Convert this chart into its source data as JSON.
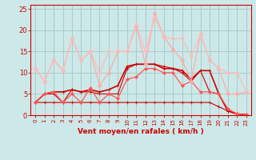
{
  "background_color": "#cce8e8",
  "grid_color": "#aacccc",
  "xlabel": "Vent moyen/en rafales ( km/h )",
  "xlabel_color": "#cc0000",
  "tick_label_color": "#cc0000",
  "axis_color": "#cc0000",
  "xlim": [
    -0.5,
    23.5
  ],
  "ylim": [
    0,
    26
  ],
  "yticks": [
    0,
    5,
    10,
    15,
    20,
    25
  ],
  "xticks": [
    0,
    1,
    2,
    3,
    4,
    5,
    6,
    7,
    8,
    9,
    10,
    11,
    12,
    13,
    14,
    15,
    16,
    17,
    18,
    19,
    20,
    21,
    22,
    23
  ],
  "lines": [
    {
      "x": [
        0,
        1,
        2,
        3,
        4,
        5,
        6,
        7,
        8,
        9,
        10,
        11,
        12,
        13,
        14,
        15,
        16,
        17,
        18,
        19,
        20,
        21,
        22,
        23
      ],
      "y": [
        3,
        3,
        3,
        3,
        3,
        3,
        3,
        3,
        3,
        3,
        3,
        3,
        3,
        3,
        3,
        3,
        3,
        3,
        3,
        3,
        2,
        1,
        0.3,
        0.1
      ],
      "color": "#cc0000",
      "lw": 0.8,
      "marker": "+",
      "ms": 3.0
    },
    {
      "x": [
        0,
        1,
        2,
        3,
        4,
        5,
        6,
        7,
        8,
        9,
        10,
        11,
        12,
        13,
        14,
        15,
        16,
        17,
        18,
        19,
        20,
        21,
        22,
        23
      ],
      "y": [
        3,
        5,
        5,
        3,
        6,
        5.5,
        5.5,
        5,
        5,
        5,
        11,
        12,
        12,
        12,
        11.5,
        11,
        10,
        8,
        10.5,
        5.5,
        5,
        1,
        0.3,
        0.1
      ],
      "color": "#cc0000",
      "lw": 0.8,
      "marker": "+",
      "ms": 3.0
    },
    {
      "x": [
        0,
        1,
        2,
        3,
        4,
        5,
        6,
        7,
        8,
        9,
        10,
        11,
        12,
        13,
        14,
        15,
        16,
        17,
        18,
        19,
        20,
        21,
        22,
        23
      ],
      "y": [
        3,
        5,
        5.5,
        5.5,
        6,
        5.5,
        6,
        5.5,
        6,
        7,
        11.5,
        12,
        12,
        12,
        11,
        11,
        10.5,
        8.5,
        10.5,
        10.5,
        5,
        1,
        0.3,
        0.1
      ],
      "color": "#cc0000",
      "lw": 1.2,
      "marker": "+",
      "ms": 3.0
    },
    {
      "x": [
        0,
        1,
        2,
        3,
        4,
        5,
        6,
        7,
        8,
        9,
        10,
        11,
        12,
        13,
        14,
        15,
        16,
        17,
        18,
        19,
        20,
        21,
        22,
        23
      ],
      "y": [
        3,
        5,
        5.5,
        3,
        5,
        3,
        6.5,
        3,
        5,
        4,
        8.5,
        9,
        11,
        11,
        10,
        10,
        7,
        8,
        5.5,
        5.5,
        5,
        1.5,
        0.3,
        0.1
      ],
      "color": "#ff5555",
      "lw": 0.9,
      "marker": "D",
      "ms": 2.0
    },
    {
      "x": [
        0,
        1,
        2,
        3,
        4,
        5,
        6,
        7,
        8,
        9,
        10,
        11,
        12,
        13,
        14,
        15,
        16,
        17,
        18,
        19,
        20,
        21,
        22,
        23
      ],
      "y": [
        11,
        8,
        13,
        10.5,
        18,
        13,
        15,
        7,
        10,
        15,
        15,
        21,
        12,
        24,
        18.5,
        15.5,
        13,
        8,
        19,
        13,
        11,
        5,
        5,
        5.5
      ],
      "color": "#ffaaaa",
      "lw": 0.9,
      "marker": "D",
      "ms": 2.5
    },
    {
      "x": [
        0,
        1,
        2,
        3,
        4,
        5,
        6,
        7,
        8,
        9,
        10,
        11,
        12,
        13,
        14,
        15,
        16,
        17,
        18,
        19,
        20,
        21,
        22,
        23
      ],
      "y": [
        11,
        8,
        13,
        10.5,
        18,
        13,
        15,
        10,
        15,
        15,
        15,
        21.5,
        15,
        23,
        18.5,
        18,
        18,
        14,
        19,
        13,
        11,
        10,
        10,
        5.5
      ],
      "color": "#ffbbbb",
      "lw": 0.9,
      "marker": "D",
      "ms": 2.0
    }
  ]
}
